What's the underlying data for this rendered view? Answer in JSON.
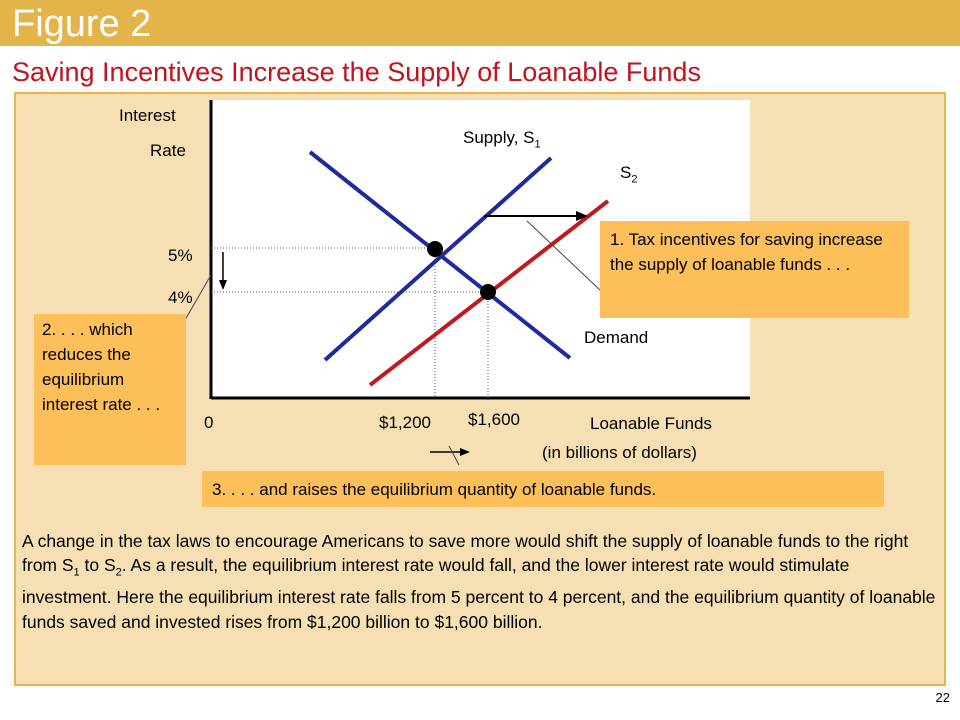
{
  "colors": {
    "accent_bar": "#e3b449",
    "title_red": "#c1121f",
    "supply_s1": "#1f2aa0",
    "supply_s2": "#c0191f",
    "panel": "#f6dfb2",
    "callout": "#fcbf5a"
  },
  "header": {
    "figure_label": "Figure 2",
    "subtitle": "Saving Incentives Increase the Supply of Loanable Funds"
  },
  "chart_data": {
    "type": "line",
    "ylabel_line1": "Interest",
    "ylabel_line2": "Rate",
    "xlabel_line1": "Loanable Funds",
    "xlabel_line2": "(in billions of dollars)",
    "origin_label": "0",
    "y_ticks": [
      {
        "value": 5,
        "label": "5%"
      },
      {
        "value": 4,
        "label": "4%"
      }
    ],
    "x_ticks": [
      {
        "value": 1200,
        "label": "$1,200"
      },
      {
        "value": 1600,
        "label": "$1,600"
      }
    ],
    "series": [
      {
        "name": "Supply, S",
        "subscript": "1",
        "color": "#1f2aa0"
      },
      {
        "name": "S",
        "subscript": "2",
        "color": "#c0191f"
      },
      {
        "name": "Demand",
        "color": "#1f2aa0"
      }
    ],
    "equilibria": [
      {
        "quantity": 1200,
        "rate": 5
      },
      {
        "quantity": 1600,
        "rate": 4
      }
    ]
  },
  "callouts": {
    "c1": "1. Tax incentives for saving increase the supply of loanable funds . . .",
    "c2": "2. . . . which reduces the equilibrium interest rate . . .",
    "c3": "3. . . . and raises the equilibrium quantity of loanable funds."
  },
  "body": {
    "part1": "A change in the tax laws to encourage Americans to save more would shift the supply of loanable funds to the right from S",
    "sub1": "1",
    "part2": " to S",
    "sub2": "2",
    "part3": ". As a result, the equilibrium interest rate would fall, and the lower interest rate would stimulate investment. Here the equilibrium interest rate falls from 5 percent to 4 percent, and the equilibrium quantity of loanable funds saved and invested rises from $1,200 billion to $1,600 billion."
  },
  "page_number": "22"
}
